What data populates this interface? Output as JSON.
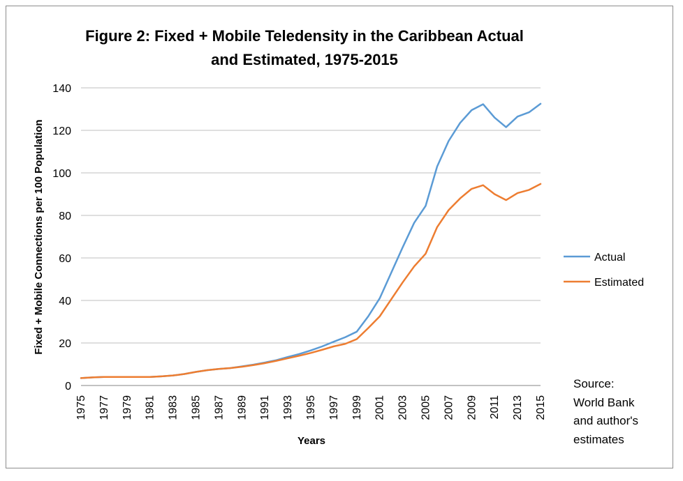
{
  "chart_data": {
    "type": "line",
    "title_lines": [
      "Figure 2: Fixed + Mobile Teledensity in the Caribbean Actual",
      "and Estimated, 1975-2015"
    ],
    "xlabel": "Years",
    "ylabel": "Fixed + Mobile Connections per 100 Population",
    "ylim": [
      0,
      140
    ],
    "yticks": [
      0,
      20,
      40,
      60,
      80,
      100,
      120,
      140
    ],
    "grid": true,
    "legend_position": "right",
    "x": [
      1975,
      1976,
      1977,
      1978,
      1979,
      1980,
      1981,
      1982,
      1983,
      1984,
      1985,
      1986,
      1987,
      1988,
      1989,
      1990,
      1991,
      1992,
      1993,
      1994,
      1995,
      1996,
      1997,
      1998,
      1999,
      2000,
      2001,
      2002,
      2003,
      2004,
      2005,
      2006,
      2007,
      2008,
      2009,
      2010,
      2011,
      2012,
      2013,
      2014,
      2015
    ],
    "x_tick_labels": [
      "1975",
      "1977",
      "1979",
      "1981",
      "1983",
      "1985",
      "1987",
      "1989",
      "1991",
      "1993",
      "1995",
      "1997",
      "1999",
      "2001",
      "2003",
      "2005",
      "2007",
      "2009",
      "2011",
      "2013",
      "2015"
    ],
    "series": [
      {
        "name": "Actual",
        "color": "#5b9bd5",
        "values": [
          3.5,
          3.8,
          4.0,
          4.0,
          4.0,
          4.0,
          4.0,
          4.3,
          4.7,
          5.4,
          6.4,
          7.2,
          7.8,
          8.2,
          9.0,
          9.8,
          10.8,
          11.9,
          13.4,
          14.8,
          16.5,
          18.4,
          20.6,
          22.7,
          25.3,
          32.5,
          41.0,
          53.0,
          65.0,
          76.5,
          84.5,
          103.0,
          115.0,
          123.5,
          129.5,
          132.3,
          126.0,
          121.5,
          126.5,
          128.5,
          132.5
        ]
      },
      {
        "name": "Estimated",
        "color": "#ed7d31",
        "values": [
          3.5,
          3.8,
          4.0,
          4.0,
          4.0,
          4.0,
          4.0,
          4.3,
          4.7,
          5.4,
          6.4,
          7.2,
          7.8,
          8.2,
          8.8,
          9.6,
          10.5,
          11.6,
          12.8,
          14.0,
          15.3,
          16.8,
          18.4,
          19.6,
          21.8,
          27.0,
          32.5,
          40.5,
          48.5,
          56.0,
          62.0,
          74.5,
          82.5,
          88.0,
          92.5,
          94.2,
          90.0,
          87.2,
          90.5,
          92.0,
          94.8
        ]
      }
    ],
    "source_lines": [
      "Source:",
      "World Bank",
      "and author's",
      "estimates"
    ]
  }
}
